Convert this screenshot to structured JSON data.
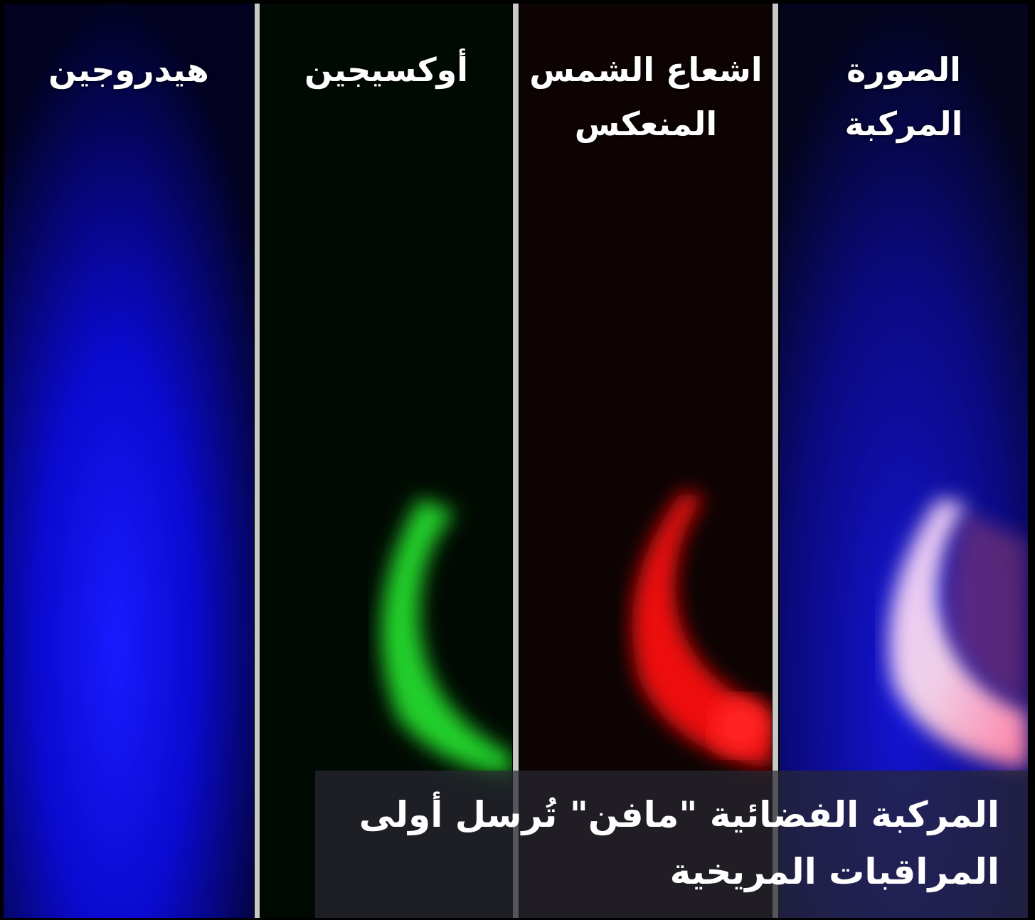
{
  "panels": [
    {
      "label_lines": [
        "هيدروجين"
      ]
    },
    {
      "label_lines": [
        "أوكسيجين"
      ]
    },
    {
      "label_lines": [
        "اشعاع الشمس",
        "المنعكس"
      ]
    },
    {
      "label_lines": [
        "الصورة",
        "المركبة"
      ]
    }
  ],
  "caption": {
    "lines": [
      "المركبة الفضائية \"مافن\" تُرسل أولى",
      "المراقبات المريخية"
    ]
  }
}
